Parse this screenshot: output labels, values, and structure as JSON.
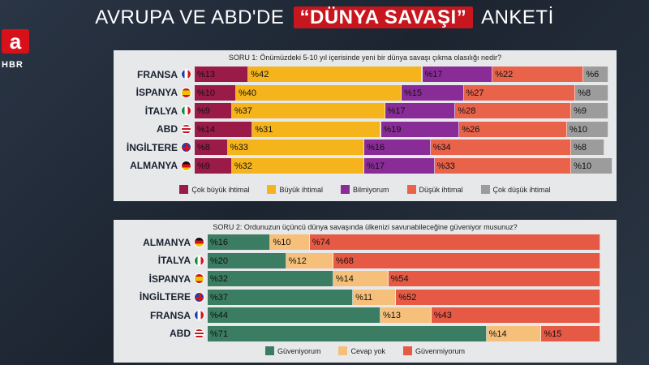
{
  "logo": {
    "letter": "a",
    "sub": "HBR"
  },
  "title": {
    "pre": "AVRUPA VE ABD'DE",
    "highlight": "“DÜNYA SAVAŞI”",
    "post": "ANKETİ"
  },
  "colors": {
    "cok_buyuk": "#9b1b48",
    "buyuk": "#f5b41c",
    "bilmiyorum": "#8a2c98",
    "dusuk": "#e8634a",
    "cok_dusuk": "#9c9c9c",
    "guveniyorum": "#3b7d63",
    "cevap_yok": "#f7c07a",
    "guvenmiyorum": "#e65a45"
  },
  "chart_data": [
    {
      "type": "bar",
      "stacked": true,
      "orientation": "horizontal",
      "title": "SORU 1: Önümüzdeki 5-10 yıl içerisinde  yeni bir dünya savaşı çıkma olasılığı nedir?",
      "categories": [
        "FRANSA",
        "İSPANYA",
        "İTALYA",
        "ABD",
        "İNGİLTERE",
        "ALMANYA"
      ],
      "flags": [
        "flag-fr",
        "flag-es",
        "flag-it",
        "flag-us",
        "flag-gb",
        "flag-de"
      ],
      "series": [
        {
          "name": "Çok büyük ihtimal",
          "color_key": "cok_buyuk",
          "values": [
            13,
            10,
            9,
            14,
            8,
            9
          ]
        },
        {
          "name": "Büyük ihtimal",
          "color_key": "buyuk",
          "values": [
            42,
            40,
            37,
            31,
            33,
            32
          ]
        },
        {
          "name": "Bilmiyorum",
          "color_key": "bilmiyorum",
          "values": [
            17,
            15,
            17,
            19,
            16,
            17
          ]
        },
        {
          "name": "Düşük ihtimal",
          "color_key": "dusuk",
          "values": [
            22,
            27,
            28,
            26,
            34,
            33
          ]
        },
        {
          "name": "Çok düşük ihtimal",
          "color_key": "cok_dusuk",
          "values": [
            6,
            8,
            9,
            10,
            8,
            10
          ]
        }
      ],
      "value_prefix": "%",
      "xlim": [
        0,
        100
      ]
    },
    {
      "type": "bar",
      "stacked": true,
      "orientation": "horizontal",
      "title": "SORU 2: Ordunuzun üçüncü dünya savaşında  ülkenizi savunabileceğine güveniyor musunuz?",
      "categories": [
        "ALMANYA",
        "İTALYA",
        "İSPANYA",
        "İNGİLTERE",
        "FRANSA",
        "ABD"
      ],
      "flags": [
        "flag-de",
        "flag-it",
        "flag-es",
        "flag-gb",
        "flag-fr",
        "flag-us"
      ],
      "series": [
        {
          "name": "Güveniyorum",
          "color_key": "guveniyorum",
          "values": [
            16,
            20,
            32,
            37,
            44,
            71
          ]
        },
        {
          "name": "Cevap yok",
          "color_key": "cevap_yok",
          "values": [
            10,
            12,
            14,
            11,
            13,
            14
          ]
        },
        {
          "name": "Güvenmiyorum",
          "color_key": "guvenmiyorum",
          "values": [
            74,
            68,
            54,
            52,
            43,
            15
          ]
        }
      ],
      "value_prefix": "%",
      "xlim": [
        0,
        100
      ]
    }
  ]
}
